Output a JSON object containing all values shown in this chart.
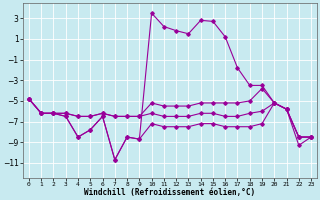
{
  "title": "",
  "xlabel": "Windchill (Refroidissement éolien,°C)",
  "background_color": "#c8eaf0",
  "grid_color": "#ffffff",
  "line_color": "#990099",
  "x_values": [
    0,
    1,
    2,
    3,
    4,
    5,
    6,
    7,
    8,
    9,
    10,
    11,
    12,
    13,
    14,
    15,
    16,
    17,
    18,
    19,
    20,
    21,
    22,
    23
  ],
  "series": [
    [
      -4.8,
      -6.2,
      -6.2,
      -6.5,
      -8.5,
      -7.8,
      -6.5,
      -10.7,
      -8.5,
      -8.7,
      3.5,
      2.2,
      1.8,
      1.5,
      2.8,
      2.7,
      1.2,
      -1.8,
      -3.5,
      -3.5,
      -5.2,
      -5.8,
      -9.3,
      -8.5
    ],
    [
      -4.8,
      -6.2,
      -6.2,
      -6.2,
      -6.5,
      -6.5,
      -6.2,
      -6.5,
      -6.5,
      -6.5,
      -5.2,
      -5.5,
      -5.5,
      -5.5,
      -5.2,
      -5.2,
      -5.2,
      -5.2,
      -5.0,
      -3.8,
      -5.2,
      -5.8,
      -8.5,
      -8.5
    ],
    [
      -4.8,
      -6.2,
      -6.2,
      -6.2,
      -6.5,
      -6.5,
      -6.2,
      -6.5,
      -6.5,
      -6.5,
      -6.2,
      -6.5,
      -6.5,
      -6.5,
      -6.2,
      -6.2,
      -6.5,
      -6.5,
      -6.2,
      -6.0,
      -5.2,
      -5.8,
      -8.5,
      -8.5
    ],
    [
      -4.8,
      -6.2,
      -6.2,
      -6.5,
      -8.5,
      -7.8,
      -6.5,
      -10.7,
      -8.5,
      -8.7,
      -7.2,
      -7.5,
      -7.5,
      -7.5,
      -7.2,
      -7.2,
      -7.5,
      -7.5,
      -7.5,
      -7.2,
      -5.2,
      -5.8,
      -8.5,
      -8.5
    ]
  ],
  "ylim": [
    -12.5,
    4.5
  ],
  "xlim": [
    -0.5,
    23.5
  ],
  "yticks": [
    3,
    1,
    -1,
    -3,
    -5,
    -7,
    -9,
    -11
  ],
  "xticks": [
    0,
    1,
    2,
    3,
    4,
    5,
    6,
    7,
    8,
    9,
    10,
    11,
    12,
    13,
    14,
    15,
    16,
    17,
    18,
    19,
    20,
    21,
    22,
    23
  ],
  "figsize": [
    3.2,
    2.0
  ],
  "dpi": 100
}
